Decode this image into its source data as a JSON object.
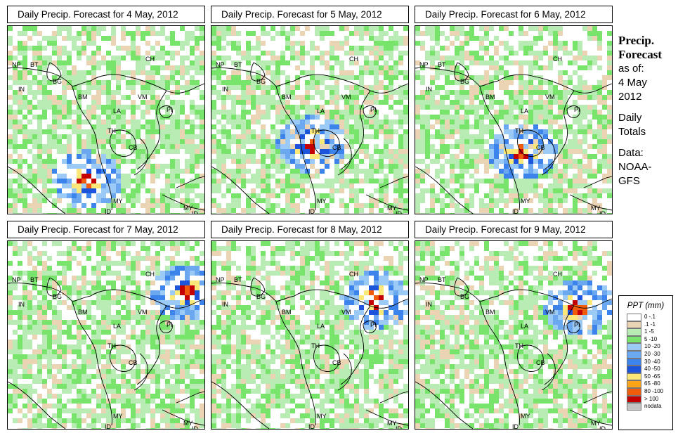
{
  "panels": [
    {
      "title": "Daily Precip. Forecast for  4 May, 2012"
    },
    {
      "title": "Daily Precip. Forecast for  5 May, 2012"
    },
    {
      "title": "Daily Precip. Forecast for  6 May, 2012"
    },
    {
      "title": "Daily Precip. Forecast for  7 May, 2012"
    },
    {
      "title": "Daily Precip. Forecast for  8 May, 2012"
    },
    {
      "title": "Daily Precip. Forecast for  9 May, 2012"
    }
  ],
  "map_labels": [
    "NP",
    "BT",
    "BG",
    "IN",
    "BM",
    "CH",
    "VM",
    "LA",
    "TH",
    "CB",
    "PI",
    "MY",
    "MY",
    "ID",
    "ID"
  ],
  "side": {
    "title_line1": "Precip.",
    "title_line2": "Forecast",
    "asof": "as of:",
    "date1": "4 May",
    "date2": "2012",
    "daily1": "Daily",
    "daily2": "Totals",
    "data1": "Data:",
    "data2": "NOAA-",
    "data3": "GFS"
  },
  "legend": {
    "title": "PPT (mm)",
    "items": [
      {
        "label": "0 -.1",
        "color": "#ffffff"
      },
      {
        "label": ".1 -1",
        "color": "#ead4b4"
      },
      {
        "label": "1 -5",
        "color": "#b8ecb4"
      },
      {
        "label": "5 -10",
        "color": "#78e46c"
      },
      {
        "label": "10 -20",
        "color": "#9ccaf6"
      },
      {
        "label": "20 -30",
        "color": "#6ca8f0"
      },
      {
        "label": "30 -40",
        "color": "#3c84ec"
      },
      {
        "label": "40 -50",
        "color": "#1c54dc"
      },
      {
        "label": "50 -65",
        "color": "#fce878"
      },
      {
        "label": "65 -80",
        "color": "#fca418"
      },
      {
        "label": "80 -100",
        "color": "#f05c0c"
      },
      {
        "label": "> 100",
        "color": "#c40000"
      },
      {
        "label": "nodata",
        "color": "#c4c4c4"
      }
    ]
  }
}
